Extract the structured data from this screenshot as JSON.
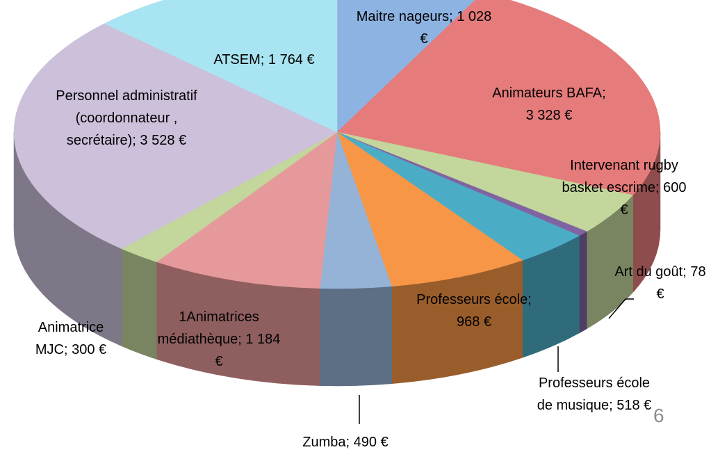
{
  "chart_data": {
    "type": "pie3d",
    "value_labels": [
      "Maitre nageurs; 1 028 €",
      "Animateurs BAFA; 3 328 €",
      "Intervenant rugby basket escrime; 600 €",
      "Art du goût; 78 €",
      "Professeurs école de musique; 518 €",
      "Professeurs école; 968 €",
      "Zumba; 490 €",
      "1Animatrices médiathèque; 1 184 €",
      "Animatrice MJC; 300 €",
      "Personnel administratif (coordonnateur , secrétaire); 3 528 €",
      "ATSEM; 1 764 €"
    ],
    "values": [
      1028,
      3328,
      600,
      78,
      518,
      968,
      490,
      1184,
      300,
      3528,
      1764
    ],
    "colors": [
      "#8db3e2",
      "#e57b7b",
      "#c3d69b",
      "#8064a2",
      "#4bacc6",
      "#f79646",
      "#95b3d7",
      "#e6999a",
      "#c3d69b",
      "#ccc0da",
      "#a9e4f2"
    ]
  },
  "page_number": "6"
}
